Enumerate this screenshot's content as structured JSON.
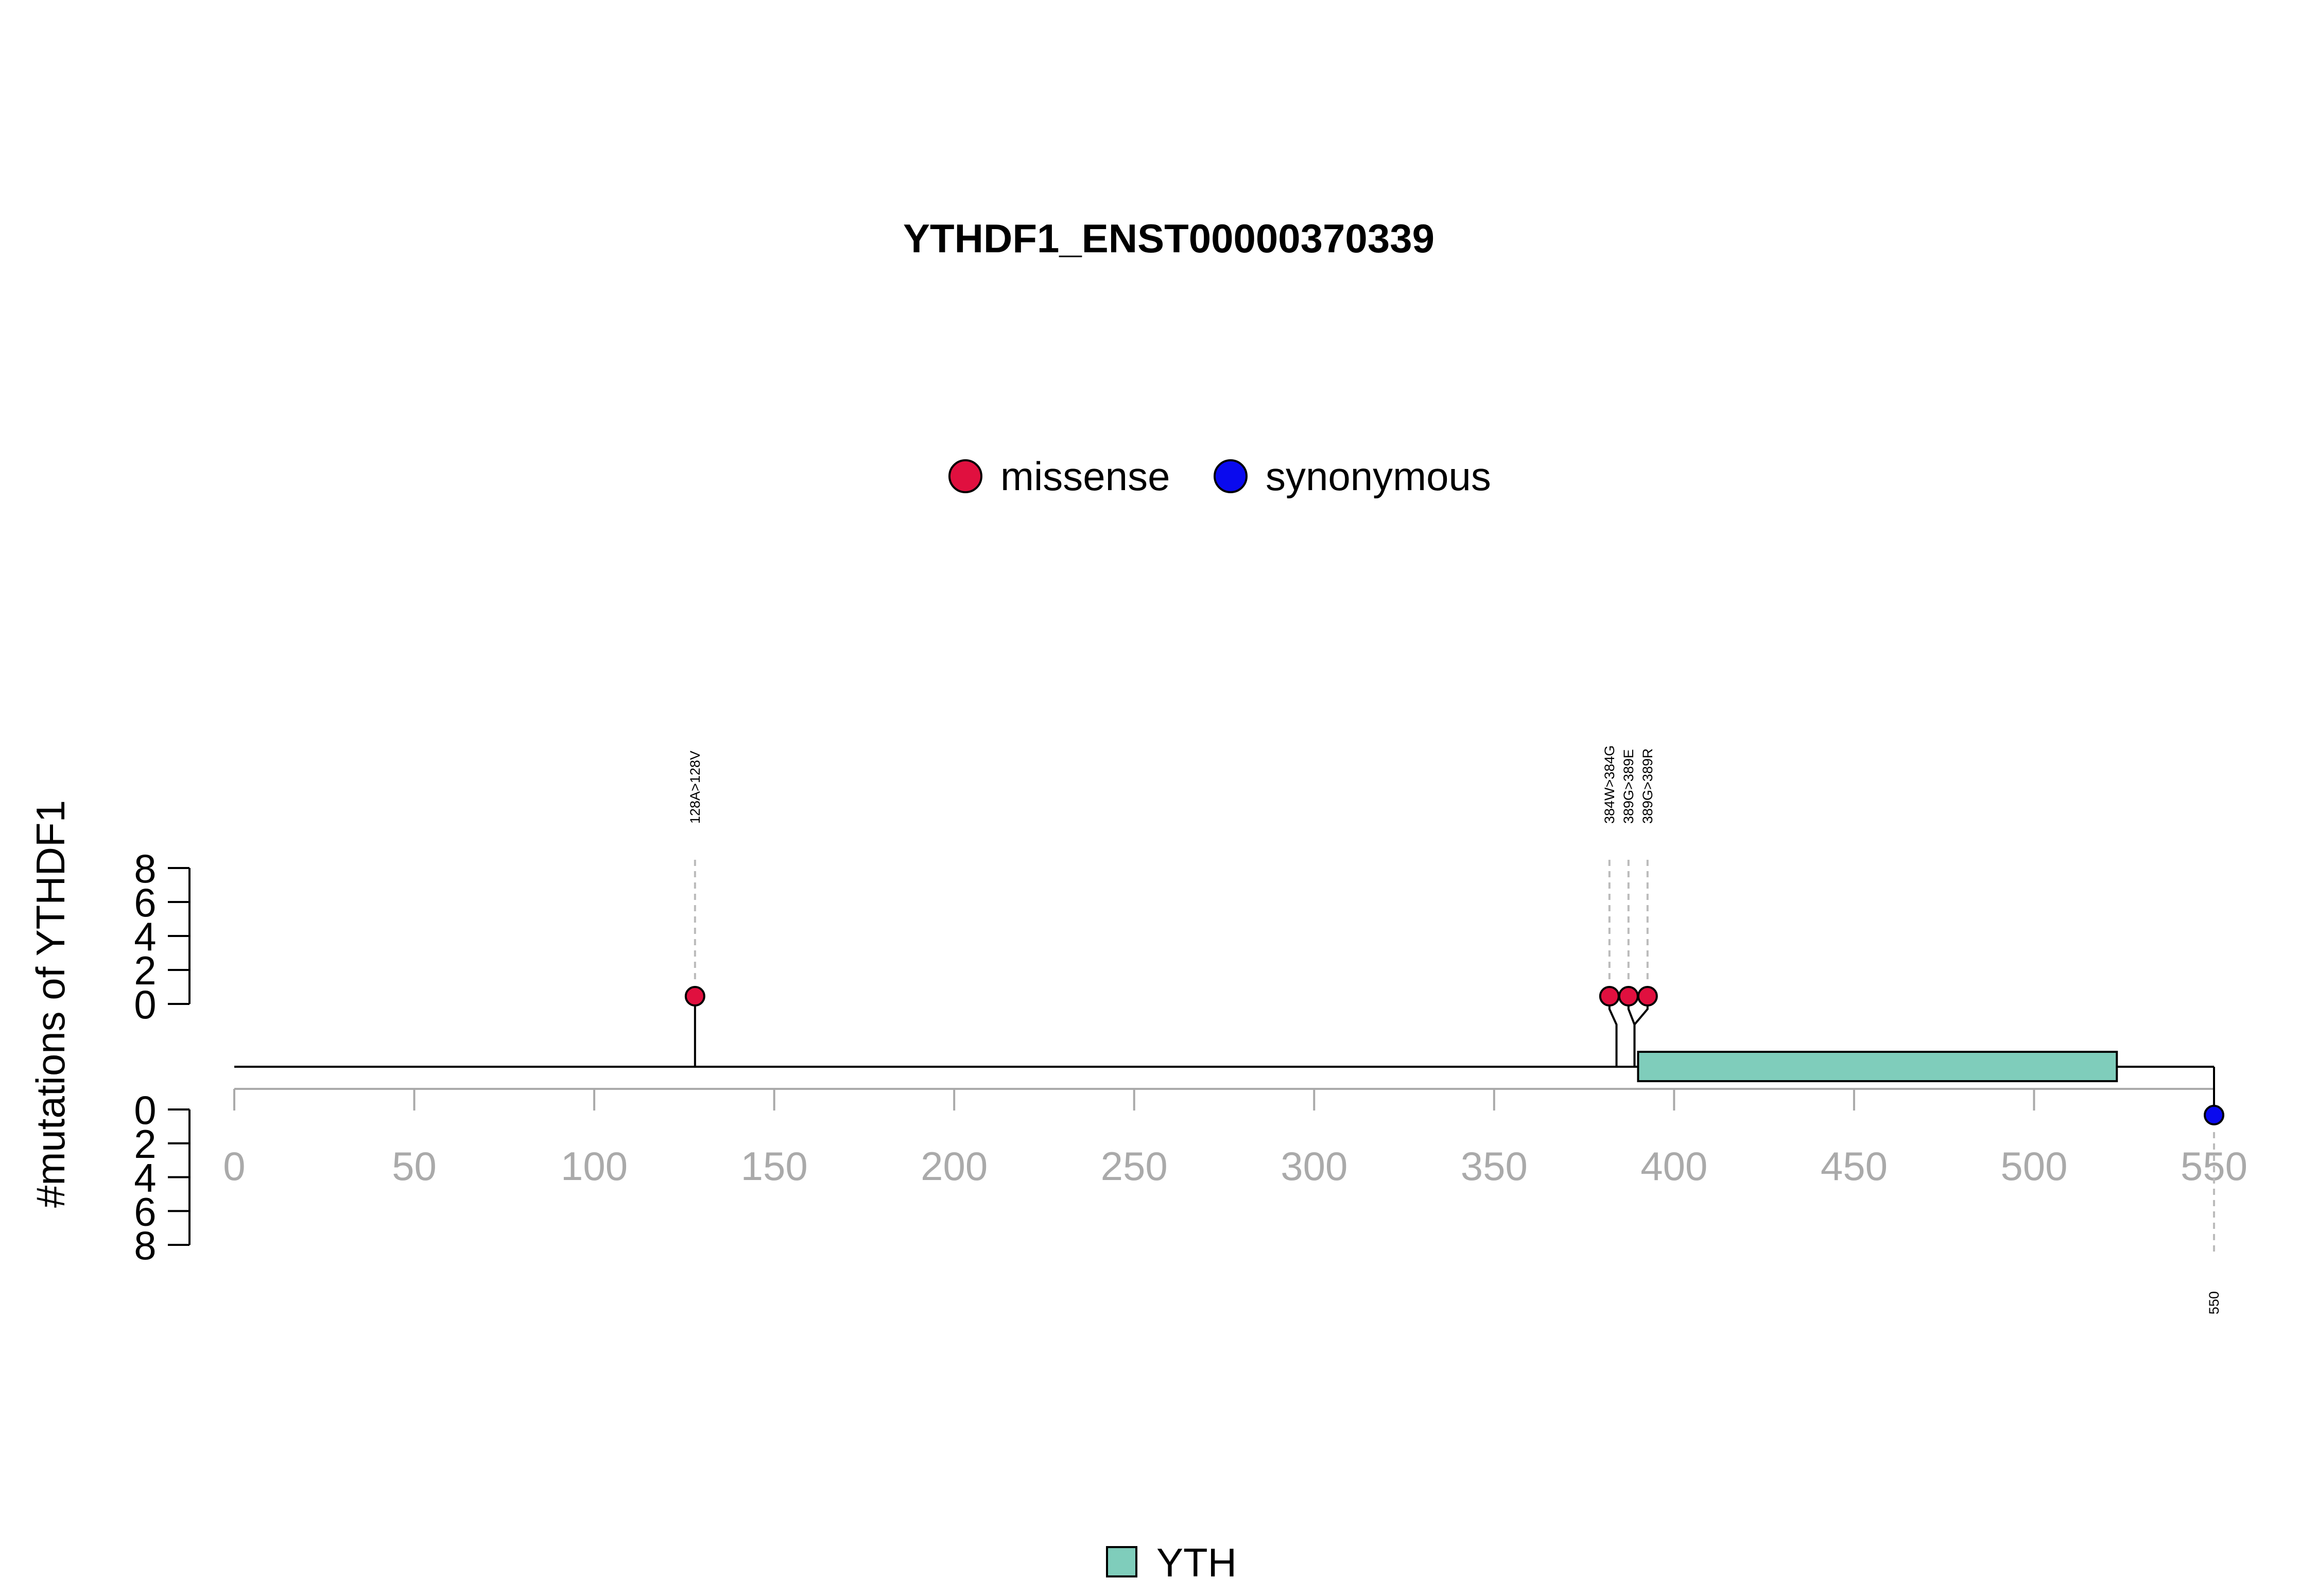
{
  "chart_data": {
    "type": "lollipop",
    "title": "YTHDF1_ENST00000370339",
    "ylabel": "#mutations of YTHDF1",
    "xlim": [
      0,
      550
    ],
    "x_ticks": [
      0,
      50,
      100,
      150,
      200,
      250,
      300,
      350,
      400,
      450,
      500,
      550
    ],
    "y_ticks_upper": [
      0,
      2,
      4,
      6,
      8
    ],
    "y_ticks_lower": [
      0,
      2,
      4,
      6,
      8
    ],
    "legend_top": [
      {
        "label": "missense",
        "color": "#E0103F"
      },
      {
        "label": "synonymous",
        "color": "#0A0AEE"
      }
    ],
    "legend_bottom": [
      {
        "label": "YTH",
        "color": "#7FCDBB"
      }
    ],
    "domains": [
      {
        "name": "YTH",
        "start": 390,
        "end": 523,
        "color": "#7FCDBB"
      }
    ],
    "mutations_upper": [
      {
        "position": 128,
        "label": "128A>128V",
        "type": "missense",
        "count": 1
      },
      {
        "position": 384,
        "label": "384W>384G",
        "type": "missense",
        "count": 1
      },
      {
        "position": 389,
        "label": "389G>389E",
        "type": "missense",
        "count": 1
      },
      {
        "position": 389,
        "label": "389G>389R",
        "type": "missense",
        "count": 1
      }
    ],
    "mutations_lower": [
      {
        "position": 550,
        "label": "550",
        "type": "synonymous",
        "count": 1
      }
    ]
  }
}
